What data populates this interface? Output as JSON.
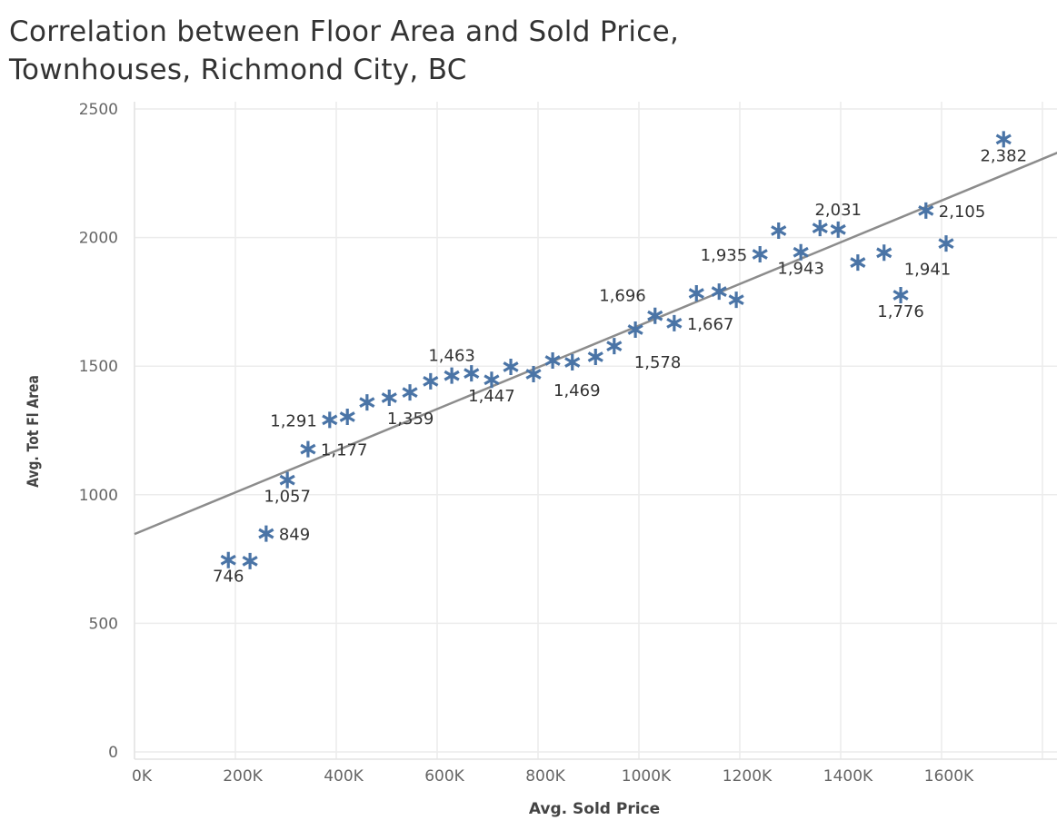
{
  "chart_data": {
    "type": "scatter",
    "title": "Correlation between Floor Area and Sold Price,\nTownhouses, Richmond City, BC",
    "title_lines": [
      "Correlation between Floor Area and Sold Price,",
      "Townhouses, Richmond City, BC"
    ],
    "xlabel": "Avg. Sold Price",
    "ylabel": "Avg. Tot Fl Area",
    "xlim": [
      0,
      1830000
    ],
    "ylim": [
      -25,
      2530
    ],
    "x_ticks": [
      0,
      200000,
      400000,
      600000,
      800000,
      1000000,
      1200000,
      1400000,
      1600000
    ],
    "x_tick_labels": [
      "0K",
      "200K",
      "400K",
      "600K",
      "800K",
      "1000K",
      "1200K",
      "1400K",
      "1600K"
    ],
    "y_ticks": [
      0,
      500,
      1000,
      1500,
      2000,
      2500
    ],
    "y_tick_labels": [
      "0",
      "500",
      "1000",
      "1500",
      "2000",
      "2500"
    ],
    "grid": true,
    "marker": "asterisk",
    "color": "#4a74a6",
    "trend_color": "#8c8c8c",
    "trend_line": {
      "intercept": 847,
      "slope_per_1000": 0.8105
    },
    "points": [
      {
        "x": 186000,
        "y": 746,
        "label": "746",
        "label_pos": "below"
      },
      {
        "x": 229000,
        "y": 742
      },
      {
        "x": 261000,
        "y": 849,
        "label": "849",
        "label_pos": "right"
      },
      {
        "x": 303000,
        "y": 1057,
        "label": "1,057",
        "label_pos": "below"
      },
      {
        "x": 344000,
        "y": 1177,
        "label": "1,177",
        "label_pos": "right"
      },
      {
        "x": 387000,
        "y": 1291,
        "label": "1,291",
        "label_pos": "left"
      },
      {
        "x": 422000,
        "y": 1303
      },
      {
        "x": 461000,
        "y": 1359,
        "label": "1,359",
        "label_pos": "below-right"
      },
      {
        "x": 505000,
        "y": 1377
      },
      {
        "x": 546000,
        "y": 1398
      },
      {
        "x": 587000,
        "y": 1441
      },
      {
        "x": 629000,
        "y": 1463,
        "label": "1,463",
        "label_pos": "above"
      },
      {
        "x": 668000,
        "y": 1472
      },
      {
        "x": 708000,
        "y": 1447,
        "label": "1,447",
        "label_pos": "below"
      },
      {
        "x": 746000,
        "y": 1497
      },
      {
        "x": 791000,
        "y": 1469,
        "label": "1,469",
        "label_pos": "below-right"
      },
      {
        "x": 829000,
        "y": 1522
      },
      {
        "x": 868000,
        "y": 1515
      },
      {
        "x": 914000,
        "y": 1536
      },
      {
        "x": 951000,
        "y": 1578,
        "label": "1,578",
        "label_pos": "below-right"
      },
      {
        "x": 993000,
        "y": 1642
      },
      {
        "x": 1032000,
        "y": 1696,
        "label": "1,696",
        "label_pos": "above-left"
      },
      {
        "x": 1070000,
        "y": 1667,
        "label": "1,667",
        "label_pos": "right"
      },
      {
        "x": 1114000,
        "y": 1783
      },
      {
        "x": 1159000,
        "y": 1790
      },
      {
        "x": 1193000,
        "y": 1758
      },
      {
        "x": 1240000,
        "y": 1935,
        "label": "1,935",
        "label_pos": "left"
      },
      {
        "x": 1277000,
        "y": 2027
      },
      {
        "x": 1321000,
        "y": 1943,
        "label": "1,943",
        "label_pos": "below"
      },
      {
        "x": 1359000,
        "y": 2037
      },
      {
        "x": 1395000,
        "y": 2031,
        "label": "2,031",
        "label_pos": "above"
      },
      {
        "x": 1434000,
        "y": 1903
      },
      {
        "x": 1486000,
        "y": 1941,
        "label": "1,941",
        "label_pos": "below-right"
      },
      {
        "x": 1519000,
        "y": 1776,
        "label": "1,776",
        "label_pos": "below"
      },
      {
        "x": 1569000,
        "y": 2105,
        "label": "2,105",
        "label_pos": "right"
      },
      {
        "x": 1609000,
        "y": 1977
      },
      {
        "x": 1723000,
        "y": 2382,
        "label": "2,382",
        "label_pos": "below"
      }
    ]
  }
}
